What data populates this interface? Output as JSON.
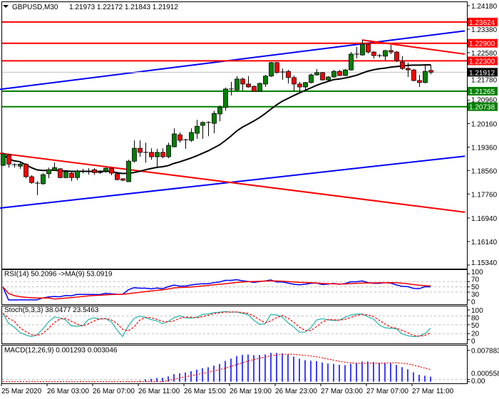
{
  "header": {
    "symbol": "GBPUSD,M30",
    "ohlc": "1.21973 1.22172 1.21843 1.21912"
  },
  "colors": {
    "background": "#ffffff",
    "bull_candle": "#008000",
    "bear_candle": "#ff0000",
    "resistance": "#ff0000",
    "support": "#008000",
    "channel": "#0000ff",
    "moving_average": "#000000",
    "rsi": "#0000ff",
    "rsi_ma": "#ff0000",
    "stoch_main": "#20b2aa",
    "stoch_signal": "#ff0000",
    "macd_hist": "#0000ff",
    "macd_signal": "#ff0000"
  },
  "chart_data": {
    "type": "candlestick",
    "symbol": "GBPUSD",
    "timeframe": "M30",
    "ylim": [
      1.1534,
      1.2418
    ],
    "price_ticks": [
      "1.24180",
      "1.23380",
      "1.22580",
      "1.21780",
      "1.20960",
      "1.20160",
      "1.19360",
      "1.18560",
      "1.17760",
      "1.16940",
      "1.16140",
      "1.15340"
    ],
    "time_labels": [
      "25 Mar 2020",
      "26 Mar 03:00",
      "26 Mar 07:00",
      "26 Mar 11:00",
      "26 Mar 15:00",
      "26 Mar 19:00",
      "26 Mar 23:00",
      "27 Mar 03:00",
      "27 Mar 07:00",
      "27 Mar 11:00"
    ],
    "time_label_bar_step": 8,
    "current_price": "1.21912",
    "horizontal_levels": [
      {
        "price": 1.23624,
        "label": "1.23624",
        "kind": "resistance"
      },
      {
        "price": 1.229,
        "label": "1.22900",
        "kind": "resistance"
      },
      {
        "price": 1.223,
        "label": "1.22300",
        "kind": "resistance"
      },
      {
        "price": 1.21265,
        "label": "1.21265",
        "kind": "support"
      },
      {
        "price": 1.20738,
        "label": "1.20738",
        "kind": "support"
      }
    ],
    "trendlines": [
      {
        "kind": "channel",
        "from": [
          -0.5,
          1.2133
        ],
        "to": [
          81,
          1.2332
        ]
      },
      {
        "kind": "channel",
        "from": [
          -0.5,
          1.1728
        ],
        "to": [
          81,
          1.1905
        ]
      },
      {
        "kind": "resistance",
        "from": [
          -0.5,
          1.1915
        ],
        "to": [
          81,
          1.1714
        ]
      },
      {
        "kind": "resistance",
        "from": [
          63,
          1.2301
        ],
        "to": [
          81,
          1.2253
        ]
      }
    ],
    "candles_ohlc": [
      [
        1.1874,
        1.1918,
        1.1871,
        1.1913
      ],
      [
        1.191,
        1.1913,
        1.1866,
        1.1878
      ],
      [
        1.1876,
        1.1881,
        1.1866,
        1.1876
      ],
      [
        1.1871,
        1.1883,
        1.1862,
        1.1878
      ],
      [
        1.1878,
        1.1881,
        1.183,
        1.1835
      ],
      [
        1.1835,
        1.184,
        1.1811,
        1.1815
      ],
      [
        1.1813,
        1.182,
        1.1772,
        1.1813
      ],
      [
        1.1811,
        1.1847,
        1.1808,
        1.1842
      ],
      [
        1.1845,
        1.1866,
        1.183,
        1.1859
      ],
      [
        1.1857,
        1.1883,
        1.1854,
        1.1866
      ],
      [
        1.1862,
        1.1864,
        1.183,
        1.1832
      ],
      [
        1.1832,
        1.1857,
        1.183,
        1.1852
      ],
      [
        1.1847,
        1.1852,
        1.182,
        1.1832
      ],
      [
        1.1832,
        1.1859,
        1.1823,
        1.1854
      ],
      [
        1.1854,
        1.1862,
        1.1847,
        1.1854
      ],
      [
        1.1854,
        1.1864,
        1.1842,
        1.1854
      ],
      [
        1.1859,
        1.1864,
        1.1842,
        1.1849
      ],
      [
        1.1849,
        1.1857,
        1.1845,
        1.1849
      ],
      [
        1.1854,
        1.1866,
        1.1849,
        1.1864
      ],
      [
        1.1864,
        1.1866,
        1.184,
        1.1847
      ],
      [
        1.1845,
        1.1847,
        1.1823,
        1.1825
      ],
      [
        1.1828,
        1.183,
        1.182,
        1.1823
      ],
      [
        1.1818,
        1.1893,
        1.1818,
        1.1888
      ],
      [
        1.1888,
        1.1959,
        1.1883,
        1.1932
      ],
      [
        1.1932,
        1.1959,
        1.1903,
        1.1918
      ],
      [
        1.1918,
        1.1951,
        1.1883,
        1.1918
      ],
      [
        1.1918,
        1.1932,
        1.1893,
        1.1903
      ],
      [
        1.1903,
        1.193,
        1.1864,
        1.1918
      ],
      [
        1.1918,
        1.1932,
        1.1898,
        1.1903
      ],
      [
        1.1903,
        1.1951,
        1.1898,
        1.1942
      ],
      [
        1.1937,
        1.2,
        1.1935,
        1.1981
      ],
      [
        1.1978,
        1.1986,
        1.1951,
        1.1959
      ],
      [
        1.1961,
        1.1964,
        1.193,
        1.1961
      ],
      [
        1.1959,
        1.2,
        1.1954,
        1.1986
      ],
      [
        1.1983,
        1.2029,
        1.1964,
        1.2007
      ],
      [
        1.201,
        1.2024,
        1.1964,
        1.202
      ],
      [
        1.202,
        1.2024,
        1.1973,
        1.202
      ],
      [
        1.2017,
        1.206,
        1.1983,
        1.2051
      ],
      [
        1.2049,
        1.2078,
        1.2024,
        1.2071
      ],
      [
        1.2071,
        1.2139,
        1.206,
        1.2134
      ],
      [
        1.2134,
        1.2158,
        1.2112,
        1.2134
      ],
      [
        1.2131,
        1.2178,
        1.2126,
        1.2168
      ],
      [
        1.2168,
        1.2173,
        1.2129,
        1.2151
      ],
      [
        1.2151,
        1.2178,
        1.2139,
        1.2141
      ],
      [
        1.2143,
        1.2146,
        1.2126,
        1.2126
      ],
      [
        1.2126,
        1.2156,
        1.2126,
        1.2153
      ],
      [
        1.2151,
        1.2182,
        1.2141,
        1.2178
      ],
      [
        1.2178,
        1.2226,
        1.2175,
        1.2224
      ],
      [
        1.2224,
        1.2226,
        1.2187,
        1.219
      ],
      [
        1.2192,
        1.2204,
        1.2165,
        1.2192
      ],
      [
        1.2194,
        1.2199,
        1.2153,
        1.2173
      ],
      [
        1.2173,
        1.218,
        1.2126,
        1.2151
      ],
      [
        1.2151,
        1.2158,
        1.2126,
        1.2141
      ],
      [
        1.2141,
        1.2158,
        1.2126,
        1.2156
      ],
      [
        1.2156,
        1.2187,
        1.2153,
        1.2182
      ],
      [
        1.2182,
        1.2202,
        1.218,
        1.219
      ],
      [
        1.219,
        1.2192,
        1.2163,
        1.2165
      ],
      [
        1.2165,
        1.2178,
        1.216,
        1.2175
      ],
      [
        1.2175,
        1.2199,
        1.2173,
        1.2194
      ],
      [
        1.2194,
        1.2199,
        1.2178,
        1.218
      ],
      [
        1.218,
        1.2202,
        1.2178,
        1.2199
      ],
      [
        1.2199,
        1.226,
        1.2197,
        1.2253
      ],
      [
        1.2253,
        1.2277,
        1.2238,
        1.2253
      ],
      [
        1.225,
        1.2301,
        1.2248,
        1.2287
      ],
      [
        1.2287,
        1.2289,
        1.2255,
        1.226
      ],
      [
        1.226,
        1.2263,
        1.2238,
        1.2248
      ],
      [
        1.2248,
        1.2253,
        1.2241,
        1.2248
      ],
      [
        1.2246,
        1.2267,
        1.2231,
        1.2265
      ],
      [
        1.2265,
        1.2284,
        1.2253,
        1.226
      ],
      [
        1.226,
        1.2263,
        1.2226,
        1.2231
      ],
      [
        1.2226,
        1.2246,
        1.2199,
        1.2204
      ],
      [
        1.2204,
        1.2224,
        1.2175,
        1.2199
      ],
      [
        1.2199,
        1.2202,
        1.216,
        1.2163
      ],
      [
        1.2163,
        1.2182,
        1.2141,
        1.2156
      ],
      [
        1.2156,
        1.2219,
        1.2153,
        1.2194
      ],
      [
        1.21973,
        1.22172,
        1.21843,
        1.21912
      ]
    ],
    "moving_average_period": 20,
    "indicators": {
      "rsi": {
        "label": "RSI(14) 50.2096  ->MA(9) 53.0919",
        "levels": [
          "100",
          "70",
          "50",
          "30",
          "0"
        ]
      },
      "stoch": {
        "label": "Stoch(5,3,3) 38.0477 23.5463",
        "levels": [
          "100",
          "80",
          "50",
          "20",
          "0"
        ]
      },
      "macd": {
        "label": "MACD(12,26,9) 0.001293 0.003046",
        "levels": [
          "0.007883",
          "0.000558",
          "0.00"
        ],
        "ylim": [
          0,
          0.007883
        ]
      }
    }
  }
}
